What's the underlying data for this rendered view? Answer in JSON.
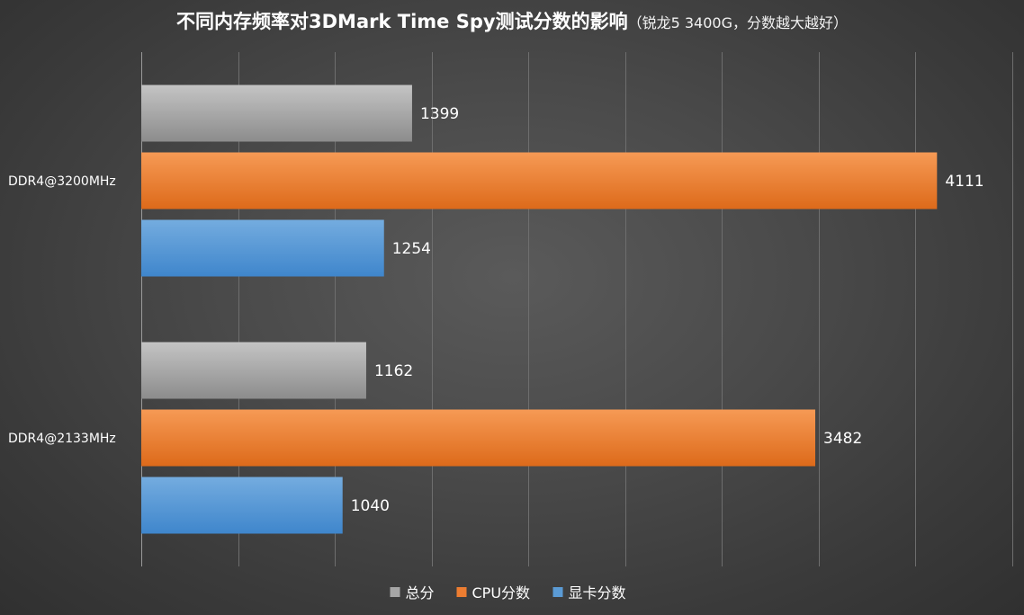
{
  "chart_data": {
    "type": "bar",
    "orientation": "horizontal",
    "title": "不同内存频率对3DMark Time Spy测试分数的影响",
    "subtitle": "（锐龙5 3400G，分数越大越好）",
    "categories": [
      "DDR4@3200MHz",
      "DDR4@2133MHz"
    ],
    "series": [
      {
        "name": "总分",
        "color": "#a6a6a6",
        "values": [
          1399,
          1162
        ]
      },
      {
        "name": "CPU分数",
        "color": "#ed7d31",
        "values": [
          4111,
          3482
        ]
      },
      {
        "name": "显卡分数",
        "color": "#5b9bd5",
        "values": [
          1254,
          1040
        ]
      }
    ],
    "xlim": [
      0,
      4500
    ],
    "grid": true,
    "legend": "bottom",
    "xlabel": "",
    "ylabel": ""
  }
}
